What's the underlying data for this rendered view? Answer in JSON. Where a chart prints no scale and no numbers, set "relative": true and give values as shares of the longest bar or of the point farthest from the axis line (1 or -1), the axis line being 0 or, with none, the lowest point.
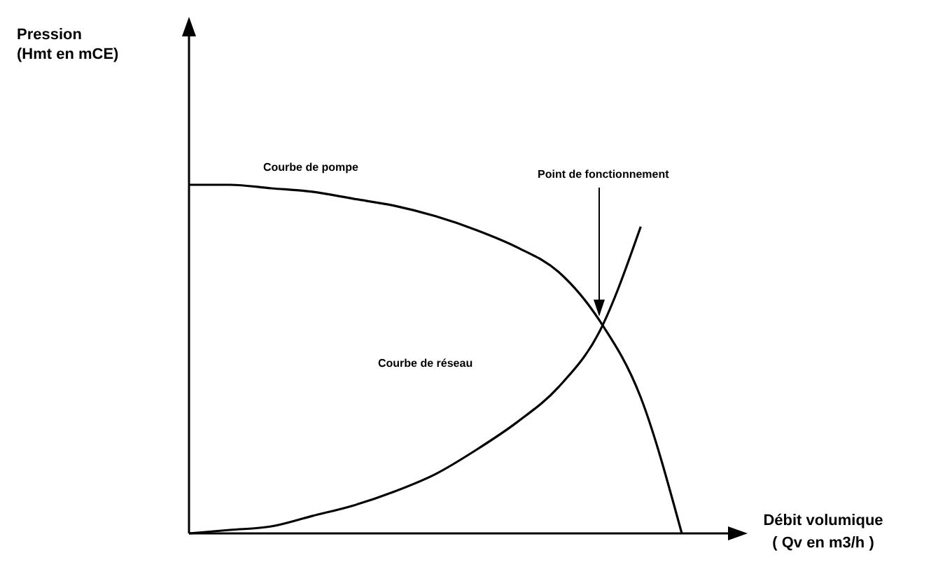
{
  "chart_data": {
    "type": "line",
    "relative": true,
    "xlabel": "Débit volumique\n( Qv en m3/h )",
    "categories": [
      null,
      null,
      null,
      null,
      null,
      null,
      null,
      null,
      null,
      null,
      null,
      null,
      null
    ],
    "series": [
      {
        "color": "#000000",
        "values": [
          1,
          1,
          0.99,
          0.98,
          0.96,
          0.94,
          0.91,
          0.87,
          0.82,
          0.75,
          0.61,
          0.39,
          0
        ]
      },
      {
        "color": "#000000",
        "values": [
          0,
          0.01,
          0.02,
          0.05,
          0.08,
          0.12,
          0.17,
          0.24,
          0.32,
          0.42,
          0.58,
          0.88,
          null
        ]
      }
    ],
    "annotations": [
      "Courbe de pompe",
      "Courbe de réseau",
      "Point de fonctionnement",
      "Pression\n(Hmt en mCE)"
    ],
    "marker": "none",
    "line_style": "solid"
  }
}
